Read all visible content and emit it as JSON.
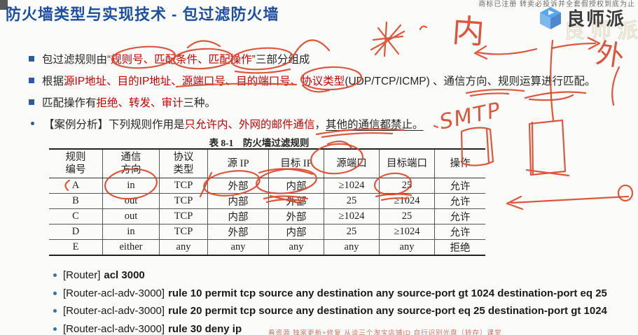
{
  "header": {
    "title": "防火墙类型与实现技术 - 包过滤防火墙",
    "watermark_notice": "商标已注册 转卖必投诉并全套假授权到底为止",
    "logo_text": "良师派"
  },
  "bullets": [
    {
      "marker": "square",
      "segments": [
        {
          "t": "包过滤规则由 ",
          "c": "k"
        },
        {
          "t": "“规则号、匹配条件、匹配操作”",
          "c": "r"
        },
        {
          "t": "三部分组成",
          "c": "k"
        }
      ]
    },
    {
      "marker": "square",
      "segments": [
        {
          "t": "根据",
          "c": "k"
        },
        {
          "t": "源IP地址、目的IP地址、源端口号、目的端口号、协议类型",
          "c": "r"
        },
        {
          "t": "(UDP/TCP/ICMP) 、通信方向、规则运算进行匹配。",
          "c": "k"
        }
      ]
    },
    {
      "marker": "square",
      "segments": [
        {
          "t": "匹配操作有",
          "c": "k"
        },
        {
          "t": "拒绝、转发、审计",
          "c": "r"
        },
        {
          "t": "三种。",
          "c": "k"
        }
      ]
    },
    {
      "marker": "dot",
      "segments": [
        {
          "t": "【案例分析】下列规则作用是",
          "c": "k"
        },
        {
          "t": "只允许内、外网的邮件通信",
          "c": "r"
        },
        {
          "t": "，",
          "c": "k"
        },
        {
          "t": "其他的通信都禁止。",
          "c": "k",
          "u": true
        }
      ]
    }
  ],
  "table": {
    "caption": "表 8-1　防火墙过滤规则",
    "headers": [
      "规则\n编号",
      "通信\n方向",
      "协议\n类型",
      "源 IP",
      "目标 IP",
      "源端口",
      "目标端口",
      "操作"
    ],
    "rows": [
      [
        "A",
        "in",
        "TCP",
        "外部",
        "内部",
        "≥1024",
        "25",
        "允许"
      ],
      [
        "B",
        "out",
        "TCP",
        "内部",
        "外部",
        "25",
        "≥1024",
        "允许"
      ],
      [
        "C",
        "out",
        "TCP",
        "内部",
        "外部",
        "≥1024",
        "25",
        "允许"
      ],
      [
        "D",
        "in",
        "TCP",
        "外部",
        "内部",
        "25",
        "≥1024",
        "允许"
      ],
      [
        "E",
        "either",
        "any",
        "any",
        "any",
        "any",
        "any",
        "拒绝"
      ]
    ]
  },
  "commands": [
    {
      "prefix": "[Router]",
      "cmd": "acl 3000"
    },
    {
      "prefix": "[Router-acl-adv-3000]",
      "cmd": "rule 10 permit tcp source any destination any source-port gt 1024 destination-port eq 25"
    },
    {
      "prefix": "[Router-acl-adv-3000]",
      "cmd": "rule 20 permit tcp source any destination any source-port eq 25 destination-port gt 1024"
    },
    {
      "prefix": "[Router-acl-adv-3000]",
      "cmd": "rule 30 deny ip"
    }
  ],
  "annotations": {
    "handwriting_inside": "内",
    "handwriting_outside": "外",
    "handwriting_protocol": "SMTP",
    "pen_color": "#d8492e"
  },
  "footer": {
    "watermark_text": "看资源 独家更新+修复 从谈三个淘宝店铺ID 自行识别光盘（转存）课堂"
  },
  "colors": {
    "title": "#1d4f9e",
    "red_text": "#c00000",
    "body_text": "#262626",
    "bullet_marker": "#2e5b9f",
    "command_bullet": "#2e74b5"
  }
}
